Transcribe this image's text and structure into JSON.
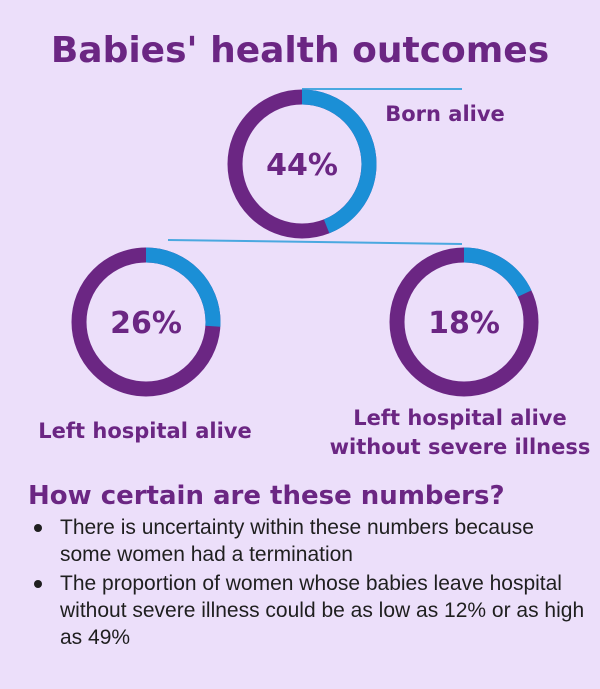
{
  "title": "Babies' health outcomes",
  "chart_data": [
    {
      "type": "pie",
      "label": "Born alive",
      "value_text": "44%",
      "values": [
        44,
        56
      ],
      "colors": [
        "#1b8fd6",
        "#6b2683"
      ]
    },
    {
      "type": "pie",
      "label": "Left hospital alive",
      "value_text": "26%",
      "values": [
        26,
        74
      ],
      "colors": [
        "#1b8fd6",
        "#6b2683"
      ]
    },
    {
      "type": "pie",
      "label": "Left hospital alive without severe illness",
      "value_text": "18%",
      "values": [
        18,
        82
      ],
      "colors": [
        "#1b8fd6",
        "#6b2683"
      ]
    }
  ],
  "captions": {
    "born_alive": "Born alive",
    "left_hospital": "Left hospital alive",
    "no_illness_line1": "Left hospital alive",
    "no_illness_line2": "without severe illness"
  },
  "certainty": {
    "heading": "How certain are these numbers?",
    "bullets": [
      "There is uncertainty within these numbers because some women had a termination",
      "The proportion of women whose babies leave hospital without severe illness could be as low as 12% or as high as 49%"
    ]
  },
  "colors": {
    "accent": "#1b8fd6",
    "primary": "#6b2683",
    "connector": "#4aa8e0",
    "background": "#ecdffa"
  }
}
